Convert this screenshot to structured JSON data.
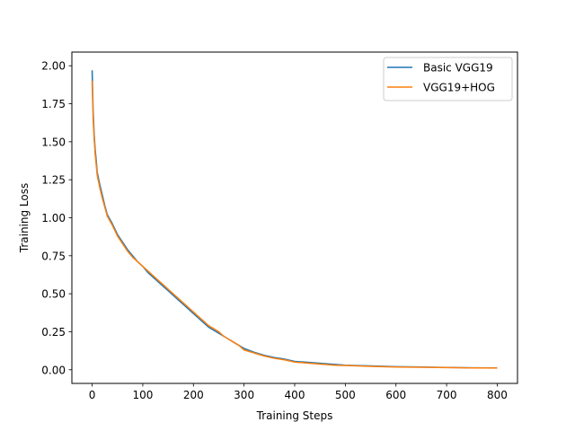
{
  "chart_data": {
    "type": "line",
    "title": "",
    "xlabel": "Training Steps",
    "ylabel": "Training Loss",
    "xlim": [
      -40,
      840
    ],
    "ylim": [
      -0.09,
      2.09
    ],
    "xticks": [
      0,
      100,
      200,
      300,
      400,
      500,
      600,
      700,
      800
    ],
    "yticks": [
      0.0,
      0.25,
      0.5,
      0.75,
      1.0,
      1.25,
      1.5,
      1.75,
      2.0
    ],
    "xtick_labels": [
      "0",
      "100",
      "200",
      "300",
      "400",
      "500",
      "600",
      "700",
      "800"
    ],
    "ytick_labels": [
      "0.00",
      "0.25",
      "0.50",
      "0.75",
      "1.00",
      "1.25",
      "1.50",
      "1.75",
      "2.00"
    ],
    "grid": false,
    "legend_position": "top-right",
    "series": [
      {
        "name": "Basic VGG19",
        "color": "#1f77b4",
        "x": [
          0,
          2,
          4,
          6,
          8,
          10,
          15,
          20,
          25,
          30,
          40,
          50,
          60,
          70,
          80,
          90,
          100,
          110,
          120,
          130,
          140,
          150,
          160,
          170,
          180,
          190,
          200,
          210,
          220,
          230,
          240,
          250,
          260,
          270,
          280,
          290,
          300,
          320,
          340,
          360,
          380,
          400,
          420,
          440,
          460,
          480,
          500,
          550,
          600,
          650,
          700,
          750,
          800
        ],
        "y": [
          1.97,
          1.7,
          1.55,
          1.45,
          1.38,
          1.3,
          1.22,
          1.15,
          1.08,
          1.02,
          0.96,
          0.89,
          0.84,
          0.79,
          0.75,
          0.71,
          0.68,
          0.64,
          0.61,
          0.58,
          0.55,
          0.52,
          0.49,
          0.46,
          0.43,
          0.4,
          0.37,
          0.34,
          0.31,
          0.28,
          0.26,
          0.24,
          0.22,
          0.2,
          0.18,
          0.16,
          0.14,
          0.115,
          0.095,
          0.08,
          0.07,
          0.055,
          0.05,
          0.045,
          0.04,
          0.035,
          0.03,
          0.025,
          0.02,
          0.018,
          0.015,
          0.013,
          0.012
        ]
      },
      {
        "name": "VGG19+HOG",
        "color": "#ff7f0e",
        "x": [
          0,
          2,
          4,
          6,
          8,
          10,
          15,
          20,
          25,
          30,
          40,
          50,
          60,
          70,
          80,
          90,
          100,
          110,
          120,
          130,
          140,
          150,
          160,
          170,
          180,
          190,
          200,
          210,
          220,
          230,
          240,
          250,
          260,
          270,
          280,
          290,
          300,
          320,
          340,
          360,
          380,
          400,
          420,
          440,
          460,
          480,
          500,
          550,
          600,
          650,
          700,
          750,
          800
        ],
        "y": [
          1.9,
          1.65,
          1.52,
          1.42,
          1.35,
          1.28,
          1.2,
          1.13,
          1.07,
          1.01,
          0.95,
          0.88,
          0.83,
          0.78,
          0.74,
          0.71,
          0.68,
          0.65,
          0.62,
          0.59,
          0.56,
          0.53,
          0.5,
          0.47,
          0.44,
          0.41,
          0.38,
          0.35,
          0.32,
          0.29,
          0.27,
          0.25,
          0.22,
          0.2,
          0.18,
          0.16,
          0.13,
          0.11,
          0.09,
          0.075,
          0.065,
          0.05,
          0.045,
          0.04,
          0.035,
          0.03,
          0.028,
          0.022,
          0.018,
          0.016,
          0.014,
          0.012,
          0.011
        ]
      }
    ]
  }
}
